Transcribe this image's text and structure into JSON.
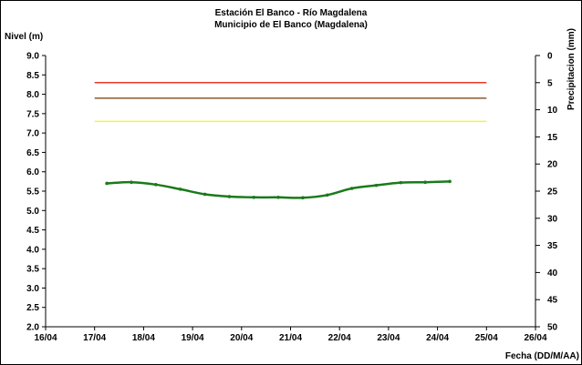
{
  "chart_data": {
    "type": "line",
    "title": "Estación El Banco - Río Magdalena",
    "subtitle": "Municipio de El Banco (Magdalena)",
    "ylabel": "Nivel (m)",
    "y2label": "Precipitacion (mm)",
    "xlabel": "Fecha (DD/M/AA)",
    "ylim": [
      2.0,
      9.0
    ],
    "y2lim": [
      0,
      50
    ],
    "y2_reversed": true,
    "xlim": [
      0,
      10
    ],
    "yticks": [
      "2.0",
      "2.5",
      "3.0",
      "3.5",
      "4.0",
      "4.5",
      "5.0",
      "5.5",
      "6.0",
      "6.5",
      "7.0",
      "7.5",
      "8.0",
      "8.5",
      "9.0"
    ],
    "y2ticks": [
      "0",
      "5",
      "10",
      "15",
      "20",
      "25",
      "30",
      "35",
      "40",
      "45",
      "50"
    ],
    "xticks": [
      "16/04",
      "17/04",
      "18/04",
      "19/04",
      "20/04",
      "21/04",
      "22/04",
      "23/04",
      "24/04",
      "25/04",
      "26/04"
    ],
    "grid": false,
    "series": [
      {
        "color": "#1a7a1a",
        "x": [
          1.25,
          1.75,
          2.25,
          2.75,
          3.25,
          3.75,
          4.25,
          4.75,
          5.25,
          5.75,
          6.25,
          6.75,
          7.25,
          7.75,
          8.25
        ],
        "values": [
          5.7,
          5.73,
          5.67,
          5.55,
          5.42,
          5.36,
          5.34,
          5.34,
          5.33,
          5.4,
          5.57,
          5.65,
          5.72,
          5.73,
          5.75
        ]
      }
    ],
    "reference_lines": [
      {
        "value": 8.3,
        "color": "#e8382a",
        "x_range": [
          1.0,
          9.0
        ]
      },
      {
        "value": 7.9,
        "color": "#8b5a2b",
        "x_range": [
          1.0,
          9.0
        ]
      },
      {
        "value": 7.3,
        "color": "#f2f24a",
        "x_range": [
          1.0,
          9.0
        ]
      }
    ]
  }
}
